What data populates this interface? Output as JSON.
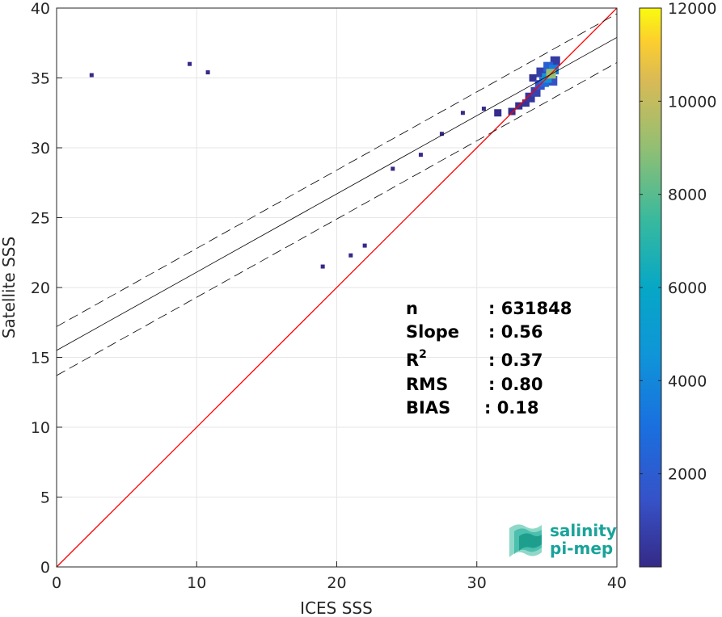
{
  "chart_data": {
    "type": "heatmap",
    "title": "",
    "xlabel": "ICES SSS",
    "ylabel": "Satellite SSS",
    "xlim": [
      0,
      40
    ],
    "ylim": [
      0,
      40
    ],
    "xticks": [
      0,
      10,
      20,
      30,
      40
    ],
    "yticks": [
      0,
      5,
      10,
      15,
      20,
      25,
      30,
      35,
      40
    ],
    "grid": true,
    "colorbar": {
      "range": [
        0,
        12000
      ],
      "ticks": [
        2000,
        4000,
        6000,
        8000,
        10000,
        12000
      ],
      "colormap": "parula"
    },
    "identity_line": {
      "from": [
        0,
        0
      ],
      "to": [
        40,
        40
      ],
      "color": "#ff0000"
    },
    "regression_line": {
      "slope": 0.56,
      "intercept": 15.5,
      "color": "#000000"
    },
    "confidence_lines": [
      {
        "slope": 0.56,
        "intercept": 17.2
      },
      {
        "slope": 0.56,
        "intercept": 13.7
      }
    ],
    "stats": [
      {
        "label": "n",
        "value": ": 631848"
      },
      {
        "label": "Slope",
        "value": ": 0.56"
      },
      {
        "label": "R",
        "sup": "2",
        "value": ": 0.37"
      },
      {
        "label": "RMS",
        "value": ": 0.80"
      },
      {
        "label": "BIAS",
        "value": ": 0.18"
      }
    ],
    "density": [
      {
        "x": 35.3,
        "y": 35.3,
        "count": 9000
      },
      {
        "x": 35.0,
        "y": 35.0,
        "count": 4500
      },
      {
        "x": 35.5,
        "y": 35.6,
        "count": 3500
      },
      {
        "x": 34.8,
        "y": 34.7,
        "count": 2800
      },
      {
        "x": 35.1,
        "y": 35.8,
        "count": 2200
      },
      {
        "x": 34.5,
        "y": 34.5,
        "count": 1500
      },
      {
        "x": 35.4,
        "y": 34.8,
        "count": 1400
      },
      {
        "x": 34.2,
        "y": 34.0,
        "count": 900
      },
      {
        "x": 34.6,
        "y": 35.4,
        "count": 800
      },
      {
        "x": 35.6,
        "y": 36.2,
        "count": 600
      },
      {
        "x": 33.8,
        "y": 33.6,
        "count": 500
      },
      {
        "x": 33.5,
        "y": 33.2,
        "count": 350
      },
      {
        "x": 33.0,
        "y": 33.0,
        "count": 250
      },
      {
        "x": 34.0,
        "y": 35.0,
        "count": 300
      },
      {
        "x": 32.5,
        "y": 32.6,
        "count": 150
      },
      {
        "x": 31.5,
        "y": 32.5,
        "count": 80
      },
      {
        "x": 30.5,
        "y": 32.8,
        "count": 40
      },
      {
        "x": 29.0,
        "y": 32.5,
        "count": 20
      },
      {
        "x": 27.5,
        "y": 31.0,
        "count": 10
      },
      {
        "x": 26.0,
        "y": 29.5,
        "count": 5
      },
      {
        "x": 24.0,
        "y": 28.5,
        "count": 3
      },
      {
        "x": 22.0,
        "y": 23.0,
        "count": 2
      },
      {
        "x": 21.0,
        "y": 22.3,
        "count": 2
      },
      {
        "x": 19.0,
        "y": 21.5,
        "count": 1
      },
      {
        "x": 9.5,
        "y": 36.0,
        "count": 1
      },
      {
        "x": 2.5,
        "y": 35.2,
        "count": 1
      },
      {
        "x": 10.8,
        "y": 35.4,
        "count": 1
      }
    ]
  },
  "logo": {
    "line1": "salinity",
    "line2": "pi-mep"
  }
}
